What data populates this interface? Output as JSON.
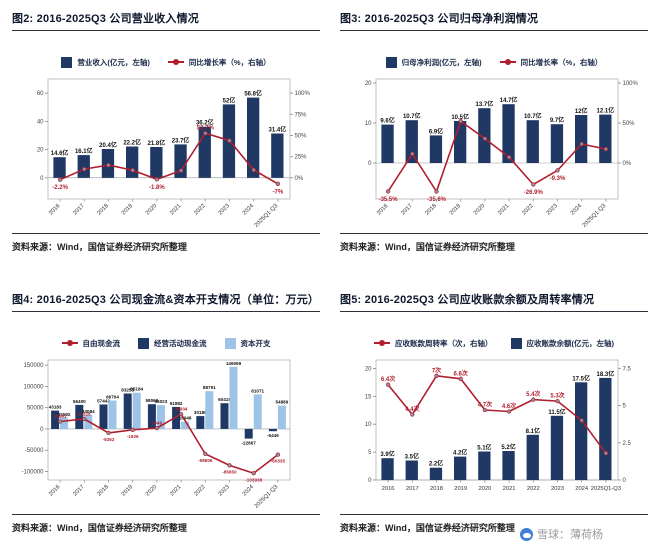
{
  "watermark": {
    "label": "雪球：薄荷杨",
    "logo": "xueqiu-snowball-icon"
  },
  "colors": {
    "bar_navy": "#1f3864",
    "bar_light": "#9dc3e6",
    "line_red": "#b01f2e",
    "marker_gray": "#8d93a3",
    "title_text": "#10192e",
    "watermark_blue": "#3f7fd6"
  },
  "chart_data": [
    {
      "id": "revenue",
      "type": "bar",
      "title": "图2: 2016-2025Q3 公司营业收入情况",
      "source": "资料来源：Wind，国信证券经济研究所整理",
      "legend": [
        {
          "swatch": "bar",
          "color": "#1f3864",
          "label": "营业收入(亿元，左轴)"
        },
        {
          "swatch": "line",
          "color": "#b01f2e",
          "label": "同比增长率（%，右轴）"
        }
      ],
      "categories": [
        "2016",
        "2017",
        "2018",
        "2019",
        "2020",
        "2021",
        "2022",
        "2023",
        "2024",
        "2025Q1-Q3"
      ],
      "bar_series": [
        {
          "name": "营业收入(亿元，左轴)",
          "color": "#1f3864",
          "values": [
            14.6,
            16.1,
            20.4,
            22.2,
            21.8,
            23.7,
            36.2,
            52,
            56.8,
            31.4
          ],
          "labels": [
            "14.6亿",
            "16.1亿",
            "20.4亿",
            "22.2亿",
            "21.8亿",
            "23.7亿",
            "36.2亿",
            "52亿",
            "56.8亿",
            "31.4亿"
          ]
        }
      ],
      "line_series": [
        {
          "name": "同比增长率（%，右轴）",
          "color": "#b01f2e",
          "axis": "right",
          "values": [
            -2.2,
            10.3,
            15,
            9,
            -1.8,
            8.7,
            52.7,
            44,
            9.2,
            -7
          ],
          "labels": [
            "-2.2%",
            "",
            "",
            "",
            "-1.8%",
            "",
            "52.7%",
            "",
            "",
            "-7%"
          ]
        }
      ],
      "left_axis": {
        "min": -15,
        "max": 70,
        "ticks": [
          0,
          20,
          40,
          60
        ]
      },
      "right_axis": {
        "min": -25,
        "max": 116.7,
        "tick_values": [
          0,
          25,
          50,
          75,
          100
        ],
        "ticks": [
          "0%",
          "25%",
          "50%",
          "75%",
          "100%"
        ]
      },
      "x_label_rotate": true,
      "label_size": 6
    },
    {
      "id": "net-profit",
      "type": "bar",
      "title": "图3: 2016-2025Q3 公司归母净利润情况",
      "source": "资料来源：Wind，国信证券经济研究所整理",
      "legend": [
        {
          "swatch": "bar",
          "color": "#1f3864",
          "label": "归母净利润(亿元，左轴)"
        },
        {
          "swatch": "line",
          "color": "#b01f2e",
          "label": "同比增长率（%，右轴）"
        }
      ],
      "categories": [
        "2016",
        "2017",
        "2018",
        "2019",
        "2020",
        "2021",
        "2022",
        "2023",
        "2024",
        "2025Q1-Q3"
      ],
      "bar_series": [
        {
          "name": "归母净利润(亿元，左轴)",
          "color": "#1f3864",
          "values": [
            9.6,
            10.7,
            6.9,
            10.5,
            13.7,
            14.7,
            10.7,
            9.7,
            12,
            12.1
          ],
          "labels": [
            "9.6亿",
            "10.7亿",
            "6.9亿",
            "10.5亿",
            "13.7亿",
            "14.7亿",
            "10.7亿",
            "9.7亿",
            "12亿",
            "12.1亿"
          ]
        }
      ],
      "line_series": [
        {
          "name": "同比增长率（%，右轴）",
          "color": "#b01f2e",
          "axis": "right",
          "values": [
            -35.5,
            11.5,
            -35.6,
            52.2,
            30.5,
            7.3,
            -26.9,
            -9.3,
            23.7,
            17.4
          ],
          "labels": [
            "-35.5%",
            "",
            "-35.6%",
            "",
            "",
            "",
            "-26.9%",
            "-9.3%",
            "",
            ""
          ]
        }
      ],
      "left_axis": {
        "min": -9,
        "max": 21,
        "ticks": [
          0,
          10,
          20
        ]
      },
      "right_axis": {
        "min": -45,
        "max": 105,
        "tick_values": [
          0,
          50,
          100
        ],
        "ticks": [
          "0%",
          "50%",
          "100%"
        ]
      },
      "x_label_rotate": true,
      "label_size": 6
    },
    {
      "id": "cashflow-capex",
      "type": "bar",
      "title": "图4: 2016-2025Q3 公司现金流&资本开支情况（单位：万元）",
      "source": "资料来源：Wind，国信证券经济研究所整理",
      "legend": [
        {
          "swatch": "line",
          "color": "#b01f2e",
          "label": "自由现金流"
        },
        {
          "swatch": "bar",
          "color": "#1f3864",
          "label": "经营活动现金流"
        },
        {
          "swatch": "bar",
          "color": "#9dc3e6",
          "label": "资本开支"
        }
      ],
      "categories": [
        "2016",
        "2017",
        "2018",
        "2019",
        "2020",
        "2021",
        "2022",
        "2023",
        "2024",
        "2025Q1-Q3"
      ],
      "bar_series": [
        {
          "name": "经营活动现金流",
          "color": "#1f3864",
          "values": [
            43183,
            56400,
            57442,
            83258,
            58069,
            51882,
            30186,
            60419,
            -22867,
            -5446
          ],
          "labels": [
            "43183",
            "56400",
            "57442",
            "83258",
            "58069",
            "51882",
            "30186",
            "60419",
            "-22867",
            "-5446"
          ]
        },
        {
          "name": "资本开支",
          "color": "#9dc3e6",
          "values": [
            25592,
            33084,
            66704,
            85184,
            56023,
            16948,
            88791,
            146069,
            81071,
            54889
          ],
          "labels": [
            "25592",
            "33084",
            "66704",
            "85184",
            "56023",
            "16948",
            "88791",
            "146069",
            "81071",
            "54889"
          ]
        }
      ],
      "line_series": [
        {
          "name": "自由现金流",
          "color": "#b01f2e",
          "axis": "left",
          "values": [
            17591,
            23316,
            -9262,
            -1926,
            2046,
            34934,
            -58606,
            -85650,
            -103938,
            -60335
          ],
          "labels": [
            "17591",
            "23316",
            "-9262",
            "-1926",
            "2046",
            "34934",
            "-58606",
            "-85650",
            "-103938",
            "-60335"
          ]
        }
      ],
      "left_axis": {
        "min": -120000,
        "max": 162000,
        "ticks": [
          -100000,
          -50000,
          0,
          50000,
          100000,
          150000
        ]
      },
      "right_axis": null,
      "x_label_rotate": true,
      "label_size": 4.6
    },
    {
      "id": "receivables",
      "type": "bar",
      "title": "图5: 2016-2025Q3 公司应收账款余额及周转率情况",
      "source": "资料来源：Wind，国信证券经济研究所整理",
      "legend": [
        {
          "swatch": "line",
          "color": "#b01f2e",
          "label": "应收账款周转率（次，右轴）"
        },
        {
          "swatch": "bar",
          "color": "#1f3864",
          "label": "应收账款余额(亿元，左轴)"
        }
      ],
      "categories": [
        "2016",
        "2017",
        "2018",
        "2019",
        "2020",
        "2021",
        "2022",
        "2023",
        "2024",
        "2025Q1-Q3"
      ],
      "bar_series": [
        {
          "name": "应收账款余额(亿元，左轴)",
          "color": "#1f3864",
          "values": [
            3.9,
            3.5,
            2.2,
            4.2,
            5.1,
            5.2,
            8.1,
            11.5,
            17.5,
            18.3
          ],
          "labels": [
            "3.9亿",
            "3.5亿",
            "2.2亿",
            "4.2亿",
            "5.1亿",
            "5.2亿",
            "8.1亿",
            "11.5亿",
            "17.5亿",
            "18.3亿"
          ]
        }
      ],
      "line_series": [
        {
          "name": "应收账款周转率（次，右轴）",
          "color": "#b01f2e",
          "axis": "right",
          "values": [
            6.4,
            4.4,
            7.0,
            6.8,
            4.7,
            4.6,
            5.4,
            5.3,
            4.0,
            1.8
          ],
          "labels": [
            "6.4次",
            "4.4次",
            "7次",
            "6.8次",
            "4.7次",
            "4.6次",
            "5.4次",
            "5.3次",
            "",
            ""
          ]
        }
      ],
      "left_axis": {
        "min": 0,
        "max": 21.5,
        "ticks": [
          0,
          5,
          10,
          15,
          20
        ]
      },
      "right_axis": {
        "min": 0,
        "max": 8.06,
        "tick_values": [
          0,
          2.5,
          5,
          7.5
        ],
        "ticks": [
          "0",
          "2.5",
          "5",
          "7.5"
        ]
      },
      "x_label_rotate": false,
      "label_size": 6
    }
  ]
}
